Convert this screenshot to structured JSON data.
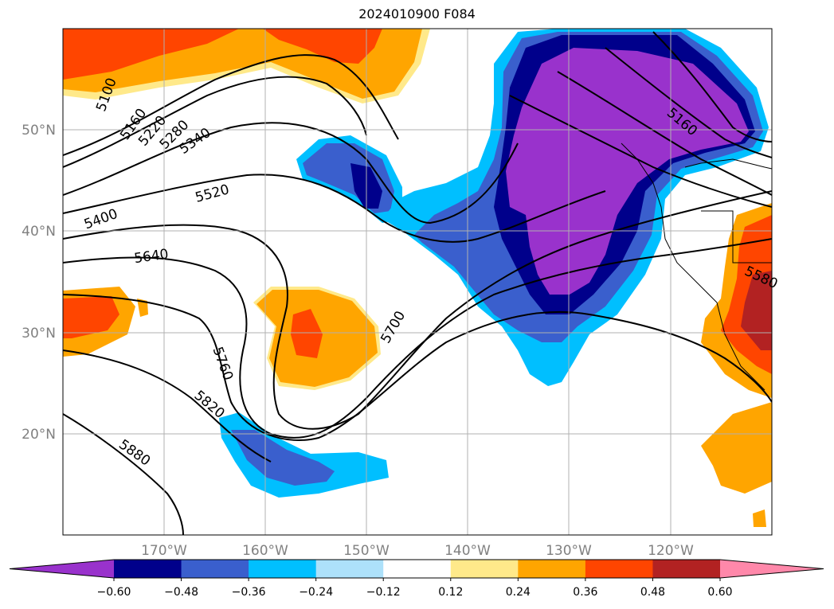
{
  "title": "2024010900 F084",
  "map": {
    "lon_labels": [
      "170°W",
      "160°W",
      "150°W",
      "140°W",
      "130°W",
      "120°W"
    ],
    "lat_labels": [
      "50°N",
      "40°N",
      "30°N",
      "20°N"
    ],
    "contour_labels": [
      "5100",
      "5160",
      "5220",
      "5280",
      "5340",
      "5400",
      "5520",
      "5640",
      "5700",
      "5760",
      "5820",
      "5880",
      "5580",
      "5160"
    ],
    "grid": true
  },
  "colorbar": {
    "ticks": [
      "−0.60",
      "−0.48",
      "−0.36",
      "−0.24",
      "−0.12",
      "0.12",
      "0.24",
      "0.36",
      "0.48",
      "0.60"
    ],
    "colors": [
      "#9932cc",
      "#00008b",
      "#3a5fcd",
      "#00bfff",
      "#ade1fa",
      "#ffffff",
      "#ffe98a",
      "#ffa500",
      "#ff4500",
      "#b22222",
      "#ff88aa"
    ]
  }
}
